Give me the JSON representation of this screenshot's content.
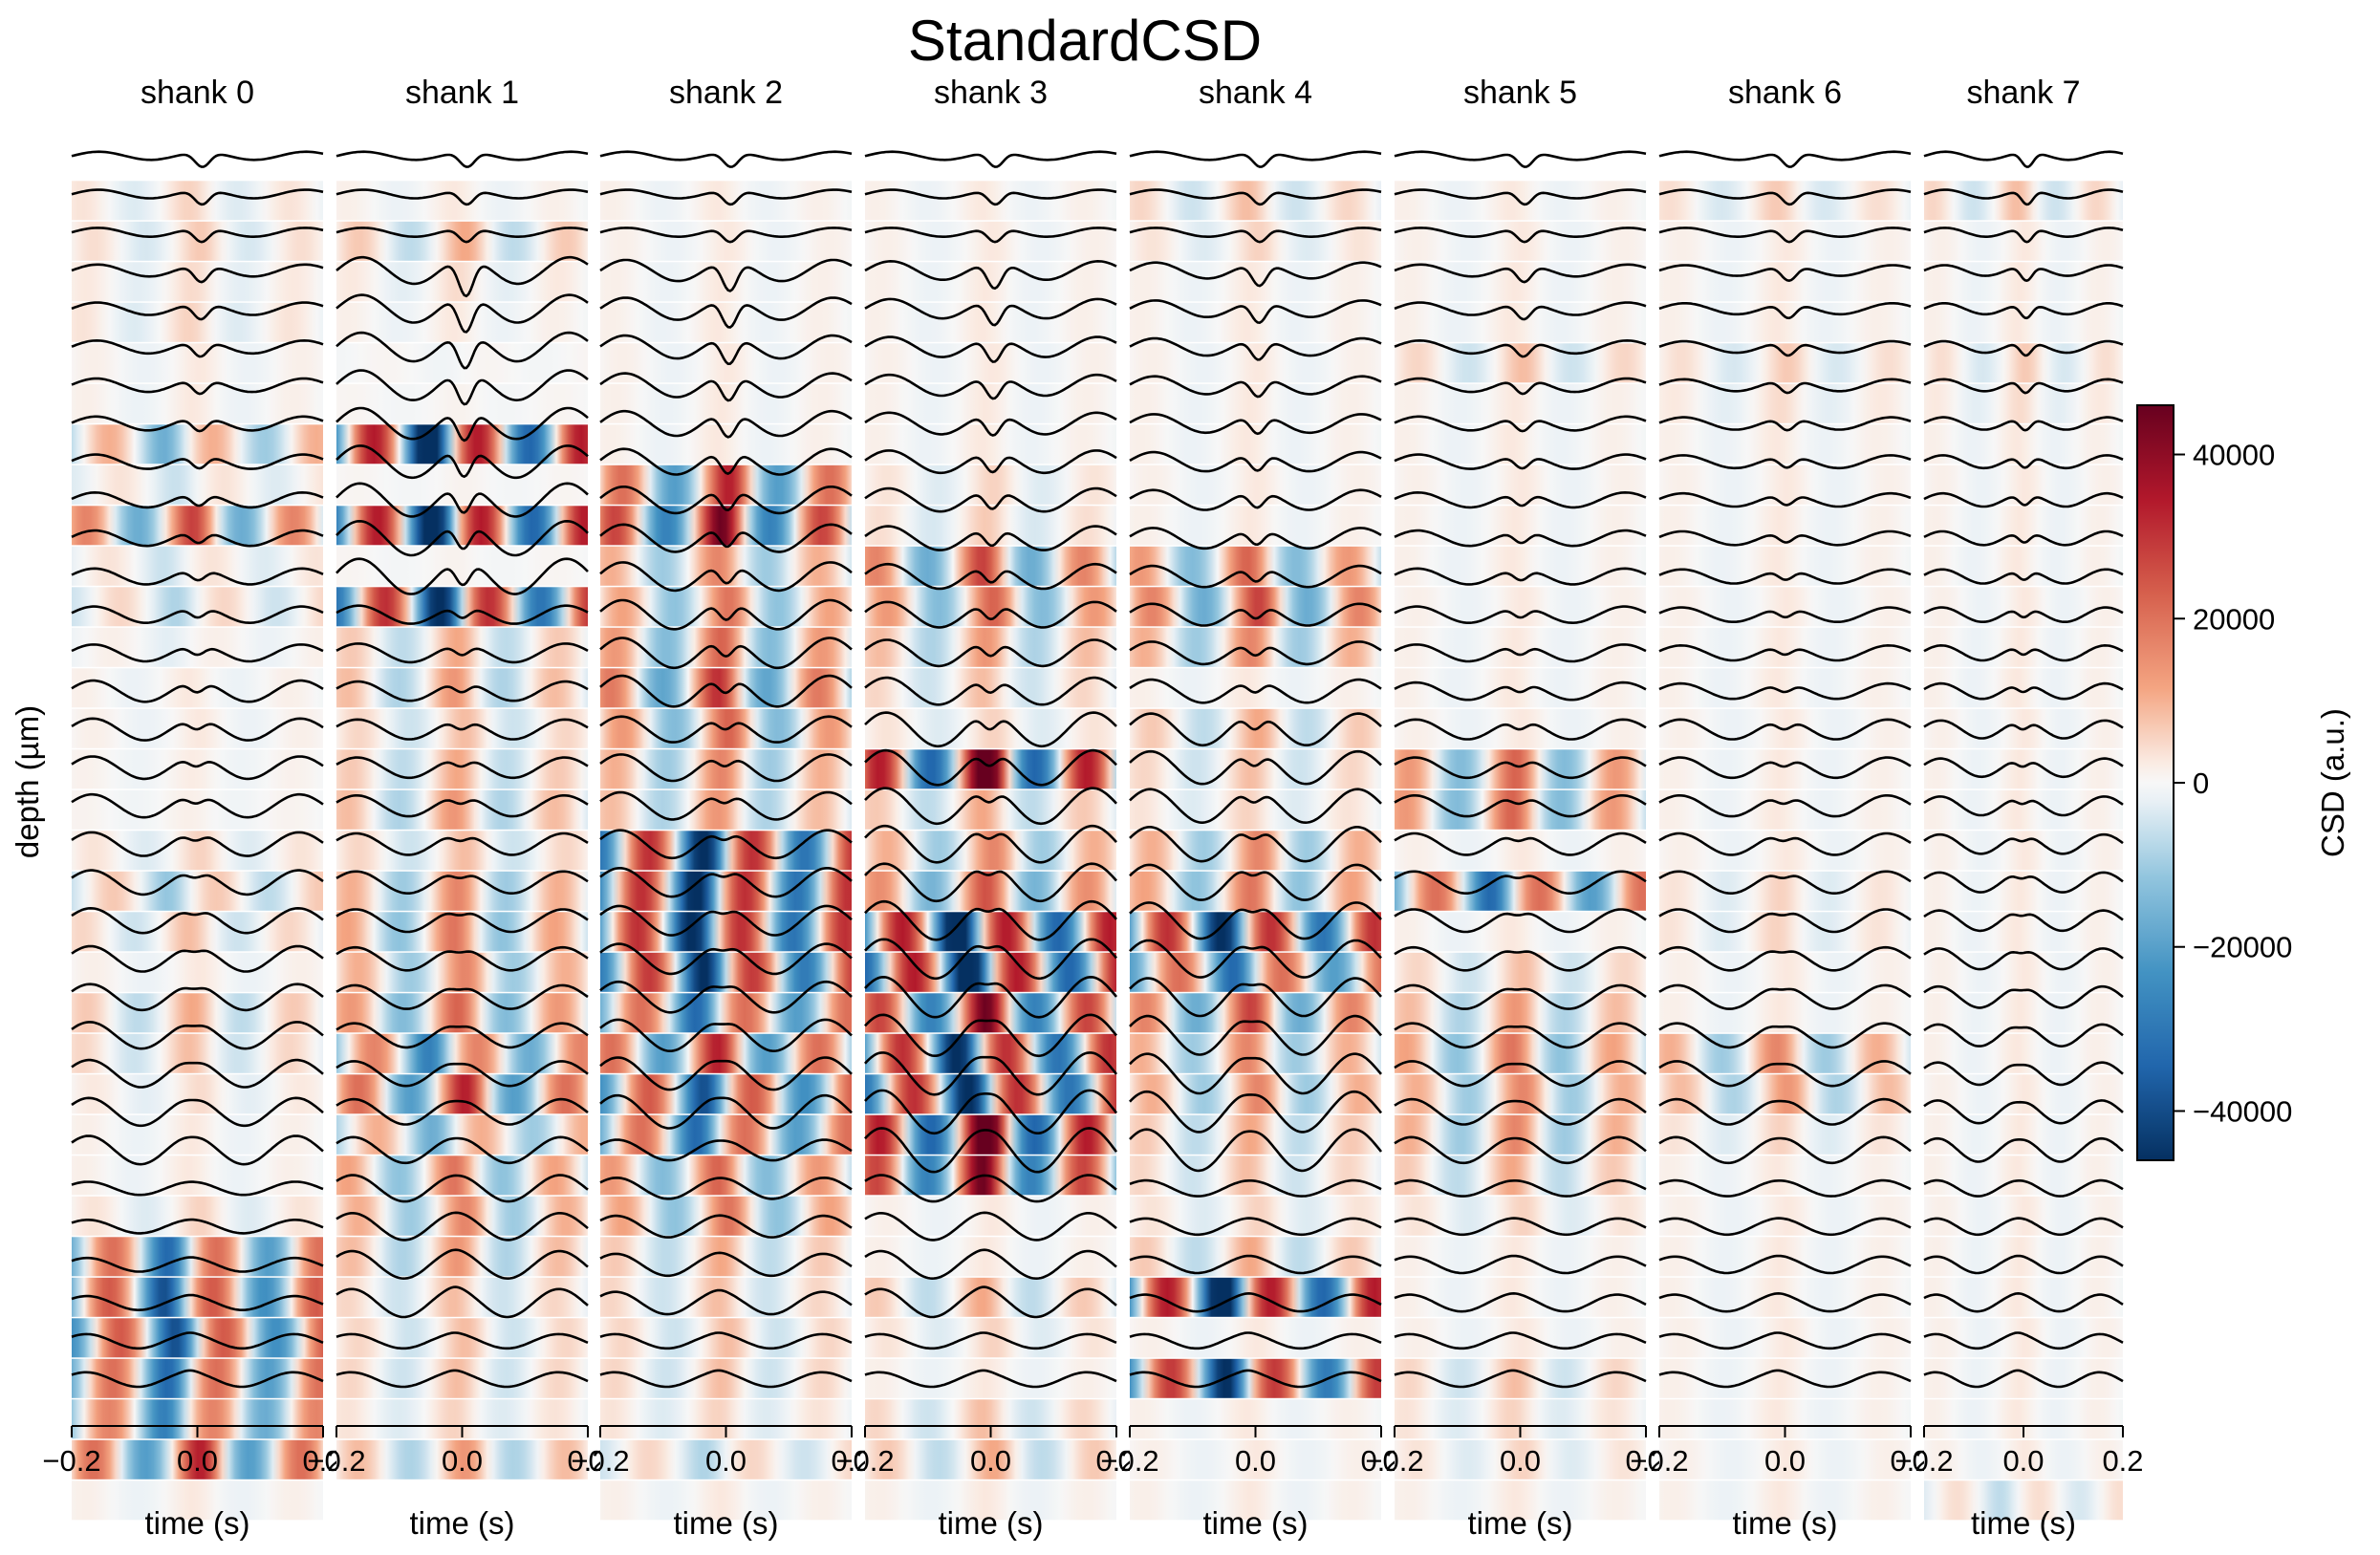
{
  "chart_data": {
    "type": "heatmap",
    "title": "StandardCSD",
    "ylabel": "depth (µm)",
    "xlabel": "time (s)",
    "xlim": [
      -0.2,
      0.2
    ],
    "x_ticks": [
      "−0.2",
      "0.0",
      "0.2"
    ],
    "panels": [
      {
        "name": "shank 0",
        "rows": 33,
        "traces": 33,
        "csd_amp": [
          0.1,
          0.12,
          0.08,
          0.1,
          0.05,
          0.05,
          -0.3,
          -0.1,
          0.5,
          -0.1,
          -0.15,
          -0.05,
          0.05,
          0.05,
          0.04,
          0.03,
          0.1,
          -0.2,
          0.15,
          0.05,
          0.2,
          0.15,
          0.08,
          0.05,
          0.05,
          0.1,
          -0.6,
          -0.7,
          -0.7,
          -0.6,
          -0.5,
          0.6,
          0.05
        ],
        "bands": [
          [
            3,
            14,
            0.45
          ],
          [
            14,
            27,
            0.55
          ],
          [
            27,
            33,
            0.25
          ]
        ]
      },
      {
        "name": "shank 1",
        "rows": 32,
        "traces": 33,
        "csd_amp": [
          0.05,
          0.2,
          0.08,
          0.05,
          -0.02,
          0.02,
          -1.0,
          0.02,
          -1.0,
          0.02,
          -0.9,
          0.2,
          0.25,
          0.15,
          0.2,
          0.25,
          0.15,
          0.3,
          0.35,
          0.3,
          0.4,
          -0.5,
          0.6,
          -0.3,
          0.35,
          0.3,
          0.25,
          0.15,
          0.15,
          0.15,
          0.1,
          0.25
        ],
        "bands": [
          [
            3,
            12,
            1.0
          ],
          [
            12,
            32,
            0.5
          ]
        ]
      },
      {
        "name": "shank 2",
        "rows": 33,
        "traces": 33,
        "csd_amp": [
          0.05,
          0.05,
          0.05,
          0.05,
          0.05,
          0.05,
          0.05,
          0.6,
          0.8,
          0.3,
          0.35,
          0.4,
          0.55,
          0.4,
          0.3,
          0.25,
          -0.9,
          -0.9,
          -0.9,
          -0.85,
          -0.6,
          0.6,
          -0.7,
          -0.6,
          0.4,
          0.35,
          0.2,
          0.15,
          0.15,
          0.15,
          0.1,
          -0.15,
          0.05
        ],
        "bands": [
          [
            3,
            15,
            0.8
          ],
          [
            15,
            26,
            0.65
          ],
          [
            26,
            33,
            0.4
          ]
        ]
      },
      {
        "name": "shank 3",
        "rows": 33,
        "traces": 33,
        "csd_amp": [
          0.05,
          0.05,
          0.05,
          0.05,
          0.05,
          0.05,
          0.05,
          0.1,
          0.12,
          0.5,
          0.4,
          0.25,
          0.15,
          0.1,
          1.0,
          0.2,
          0.3,
          0.45,
          -1.0,
          -1.0,
          0.8,
          -0.9,
          -0.9,
          1.0,
          0.8,
          0.05,
          0.05,
          0.2,
          0.1,
          0.05,
          0.15,
          0.2,
          0.05
        ],
        "bands": [
          [
            3,
            15,
            0.7
          ],
          [
            15,
            27,
            0.85
          ],
          [
            27,
            33,
            0.5
          ]
        ]
      },
      {
        "name": "shank 4",
        "rows": 33,
        "traces": 33,
        "csd_amp": [
          0.15,
          0.1,
          0.05,
          0.05,
          0.05,
          0.05,
          0.05,
          0.05,
          0.05,
          0.4,
          0.5,
          0.3,
          0.05,
          0.2,
          0.15,
          0.1,
          0.3,
          0.35,
          -0.9,
          -0.6,
          0.5,
          0.3,
          0.3,
          0.2,
          0.15,
          0.1,
          0.2,
          -1.0,
          0.05,
          -0.85,
          0.05,
          0.05,
          0.05
        ],
        "bands": [
          [
            3,
            15,
            0.6
          ],
          [
            15,
            27,
            0.8
          ],
          [
            27,
            33,
            0.3
          ]
        ]
      },
      {
        "name": "shank 5",
        "rows": 33,
        "traces": 33,
        "csd_amp": [
          0.05,
          0.05,
          0.05,
          0.05,
          0.15,
          0.05,
          0.05,
          0.05,
          0.05,
          0.05,
          0.05,
          0.05,
          0.05,
          0.05,
          0.4,
          0.4,
          0.05,
          -0.6,
          0.05,
          0.15,
          0.25,
          0.35,
          0.3,
          0.3,
          0.2,
          0.1,
          0.05,
          0.05,
          0.05,
          0.15,
          0.1,
          0.1,
          0.05
        ],
        "bands": [
          [
            3,
            15,
            0.45
          ],
          [
            15,
            27,
            0.5
          ],
          [
            27,
            33,
            0.3
          ]
        ]
      },
      {
        "name": "shank 6",
        "rows": 33,
        "traces": 33,
        "csd_amp": [
          0.12,
          0.05,
          0.05,
          0.05,
          0.12,
          0.08,
          0.05,
          0.05,
          0.05,
          0.05,
          0.05,
          0.05,
          0.05,
          0.05,
          0.05,
          0.05,
          0.05,
          0.1,
          0.1,
          0.05,
          0.05,
          0.3,
          0.25,
          0.1,
          0.05,
          0.05,
          0.05,
          0.05,
          0.05,
          0.05,
          0.05,
          0.05,
          0.05
        ],
        "bands": [
          [
            3,
            15,
            0.4
          ],
          [
            15,
            27,
            0.5
          ],
          [
            27,
            33,
            0.3
          ]
        ]
      },
      {
        "name": "shank 7",
        "rows": 33,
        "traces": 33,
        "csd_amp": [
          0.15,
          0.05,
          0.05,
          0.05,
          0.12,
          0.08,
          0.05,
          0.05,
          0.05,
          0.05,
          0.05,
          0.05,
          0.05,
          0.05,
          0.05,
          0.05,
          0.05,
          0.05,
          0.05,
          0.05,
          0.05,
          0.05,
          0.05,
          0.05,
          0.05,
          0.05,
          0.05,
          0.05,
          0.05,
          0.05,
          0.05,
          0.05,
          -0.12
        ],
        "bands": [
          [
            3,
            15,
            0.4
          ],
          [
            15,
            27,
            0.45
          ],
          [
            27,
            33,
            0.3
          ]
        ]
      }
    ],
    "colorbar": {
      "label": "CSD (a.u.)",
      "cmap": "RdBu_r",
      "range": [
        -46000,
        46000
      ],
      "ticks": [
        "40000",
        "20000",
        "0",
        "−20000",
        "−40000"
      ],
      "tick_values": [
        40000,
        20000,
        0,
        -20000,
        -40000
      ]
    }
  }
}
